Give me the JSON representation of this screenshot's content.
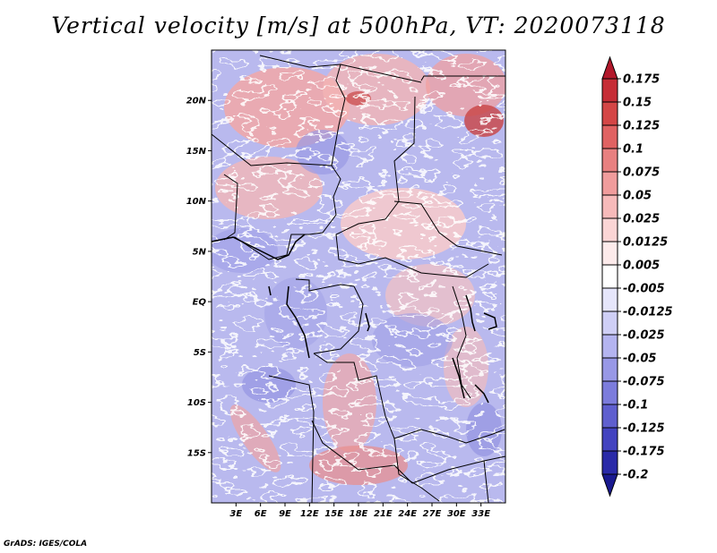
{
  "title": "Vertical velocity [m/s] at 500hPa, VT: 2020073118",
  "footer": "GrADS: IGES/COLA",
  "map": {
    "lon_range": [
      0,
      36
    ],
    "lat_range": [
      -20,
      25
    ],
    "lat_ticks": [
      {
        "value": 20,
        "label": "20N"
      },
      {
        "value": 15,
        "label": "15N"
      },
      {
        "value": 10,
        "label": "10N"
      },
      {
        "value": 5,
        "label": "5N"
      },
      {
        "value": 0,
        "label": "EQ"
      },
      {
        "value": -5,
        "label": "5S"
      },
      {
        "value": -10,
        "label": "10S"
      },
      {
        "value": -15,
        "label": "15S"
      }
    ],
    "lon_ticks": [
      {
        "value": 3,
        "label": "3E"
      },
      {
        "value": 6,
        "label": "6E"
      },
      {
        "value": 9,
        "label": "9E"
      },
      {
        "value": 12,
        "label": "12E"
      },
      {
        "value": 15,
        "label": "15E"
      },
      {
        "value": 18,
        "label": "18E"
      },
      {
        "value": 21,
        "label": "21E"
      },
      {
        "value": 24,
        "label": "24E"
      },
      {
        "value": 27,
        "label": "27E"
      },
      {
        "value": 30,
        "label": "30E"
      },
      {
        "value": 33,
        "label": "33E"
      }
    ]
  },
  "colorbar": {
    "levels": [
      {
        "label": "0.175",
        "color": "#b2182b"
      },
      {
        "label": "0.15",
        "color": "#c62d36"
      },
      {
        "label": "0.125",
        "color": "#d44646"
      },
      {
        "label": "0.1",
        "color": "#e06262"
      },
      {
        "label": "0.075",
        "color": "#e88080"
      },
      {
        "label": "0.05",
        "color": "#f09c9c"
      },
      {
        "label": "0.025",
        "color": "#f7baba"
      },
      {
        "label": "0.0125",
        "color": "#fbd5d5"
      },
      {
        "label": "0.005",
        "color": "#fdebeb"
      },
      {
        "label": "-0.005",
        "color": "#ffffff"
      },
      {
        "label": "-0.0125",
        "color": "#e6e6fb"
      },
      {
        "label": "-0.025",
        "color": "#cfcff6"
      },
      {
        "label": "-0.05",
        "color": "#b4b4f0"
      },
      {
        "label": "-0.075",
        "color": "#9898e6"
      },
      {
        "label": "-0.1",
        "color": "#7c7cdc"
      },
      {
        "label": "-0.125",
        "color": "#5f5fcf"
      },
      {
        "label": "-0.175",
        "color": "#4343c0"
      },
      {
        "label": "-0.2",
        "color": "#2a2aa8"
      }
    ],
    "top_color": "#b2182b",
    "bottom_color": "#1a1a90",
    "background_color": "#ffffff"
  }
}
